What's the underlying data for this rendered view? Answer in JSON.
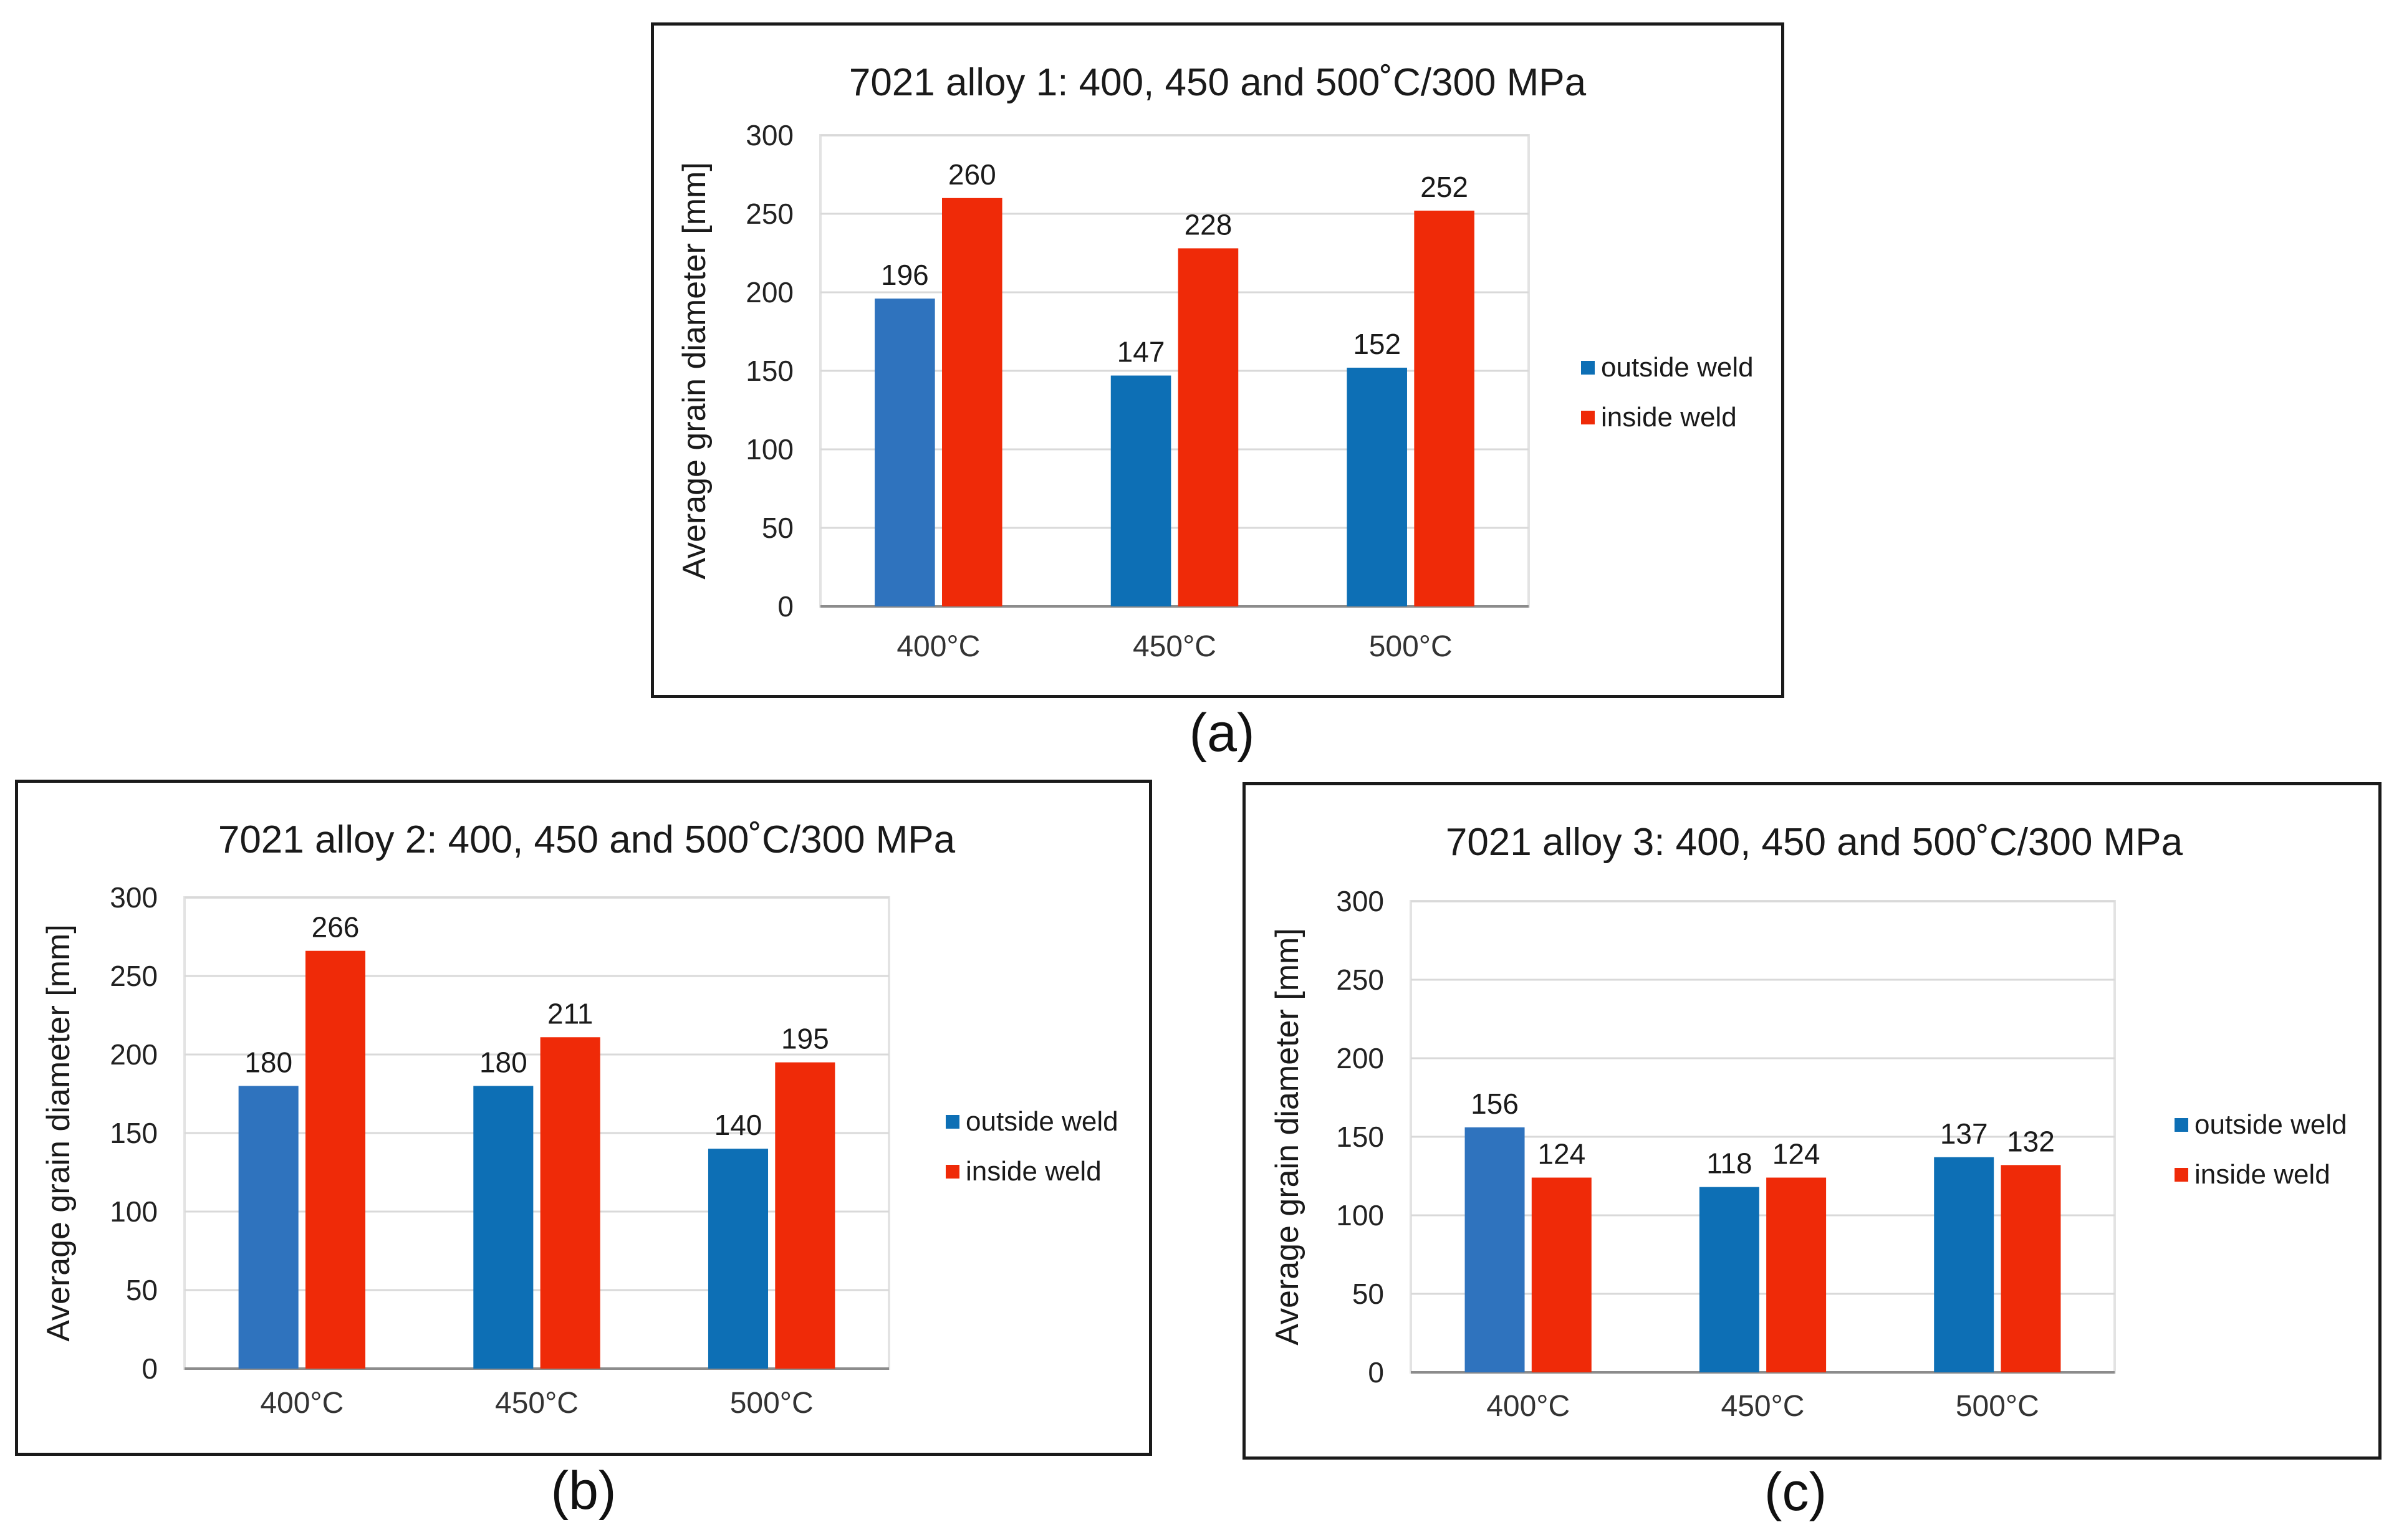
{
  "figure": {
    "colors": {
      "outside": "#2f73be",
      "outside_alt": "#0d6fb5",
      "inside": "#ef2a08",
      "grid": "#d9d9d9",
      "axis": "#8c8c8c"
    },
    "legend": {
      "outside_label": "outside weld",
      "inside_label": "inside weld"
    }
  },
  "chart_data": [
    {
      "panel": "a",
      "caption": "(a)",
      "type": "bar",
      "title": "7021 alloy 1: 400, 450 and 500˚C/300 MPa",
      "xlabel": "",
      "ylabel": "Average grain diameter [mm]",
      "ylim": [
        0,
        300
      ],
      "yticks": [
        0,
        50,
        100,
        150,
        200,
        250,
        300
      ],
      "grid": true,
      "legend_position": "right",
      "categories": [
        "400°C",
        "450°C",
        "500°C"
      ],
      "series": [
        {
          "name": "outside weld",
          "values": [
            196,
            147,
            152
          ]
        },
        {
          "name": "inside weld",
          "values": [
            260,
            228,
            252
          ]
        }
      ]
    },
    {
      "panel": "b",
      "caption": "(b)",
      "type": "bar",
      "title": "7021 alloy 2: 400, 450 and 500˚C/300 MPa",
      "xlabel": "",
      "ylabel": "Average grain diameter [mm]",
      "ylim": [
        0,
        300
      ],
      "yticks": [
        0,
        50,
        100,
        150,
        200,
        250,
        300
      ],
      "grid": true,
      "legend_position": "right",
      "categories": [
        "400°C",
        "450°C",
        "500°C"
      ],
      "series": [
        {
          "name": "outside weld",
          "values": [
            180,
            180,
            140
          ]
        },
        {
          "name": "inside weld",
          "values": [
            266,
            211,
            195
          ]
        }
      ]
    },
    {
      "panel": "c",
      "caption": "(c)",
      "type": "bar",
      "title": "7021 alloy 3: 400, 450 and 500˚C/300 MPa",
      "xlabel": "",
      "ylabel": "Average grain diameter [mm]",
      "ylim": [
        0,
        300
      ],
      "yticks": [
        0,
        50,
        100,
        150,
        200,
        250,
        300
      ],
      "grid": true,
      "legend_position": "right",
      "categories": [
        "400°C",
        "450°C",
        "500°C"
      ],
      "series": [
        {
          "name": "outside weld",
          "values": [
            156,
            118,
            137
          ]
        },
        {
          "name": "inside weld",
          "values": [
            124,
            124,
            132
          ]
        }
      ]
    }
  ]
}
